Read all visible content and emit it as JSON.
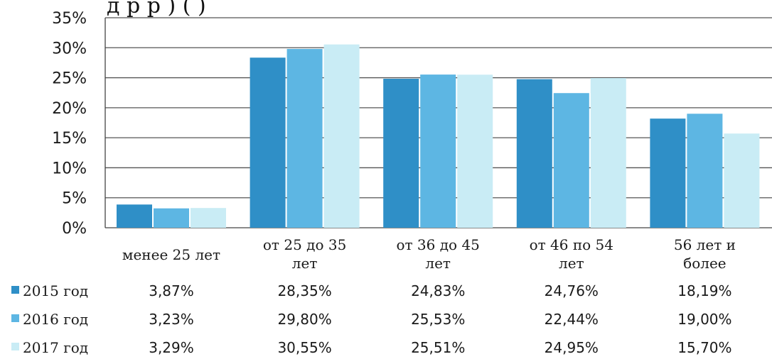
{
  "chart_data": {
    "type": "bar",
    "title_fragment": "д                  р                                          р            )         (                       )",
    "categories": [
      [
        "менее 25 лет"
      ],
      [
        "от 25 до 35",
        "лет"
      ],
      [
        "от 36 до 45",
        "лет"
      ],
      [
        "от 46 по 54",
        "лет"
      ],
      [
        "56 лет и",
        "более"
      ]
    ],
    "ylim": [
      0,
      35
    ],
    "yticks": [
      0,
      5,
      10,
      15,
      20,
      25,
      30,
      35
    ],
    "ytick_labels": [
      "0%",
      "5%",
      "10%",
      "15%",
      "20%",
      "25%",
      "30%",
      "35%"
    ],
    "grid": true,
    "legend_placement": "left data table",
    "series": [
      {
        "name": "2015 год",
        "color": "#2f8fc7",
        "values": [
          3.87,
          28.35,
          24.83,
          24.76,
          18.19
        ],
        "labels": [
          "3,87%",
          "28,35%",
          "24,83%",
          "24,76%",
          "18,19%"
        ]
      },
      {
        "name": "2016 год",
        "color": "#5db6e3",
        "values": [
          3.23,
          29.8,
          25.53,
          22.44,
          19.0
        ],
        "labels": [
          "3,23%",
          "29,80%",
          "25,53%",
          "22,44%",
          "19,00%"
        ]
      },
      {
        "name": "2017 год",
        "color": "#c9ecf5",
        "values": [
          3.29,
          30.55,
          25.51,
          24.95,
          15.7
        ],
        "labels": [
          "3,29%",
          "30,55%",
          "25,51%",
          "24,95%",
          "15,70%"
        ]
      }
    ]
  }
}
